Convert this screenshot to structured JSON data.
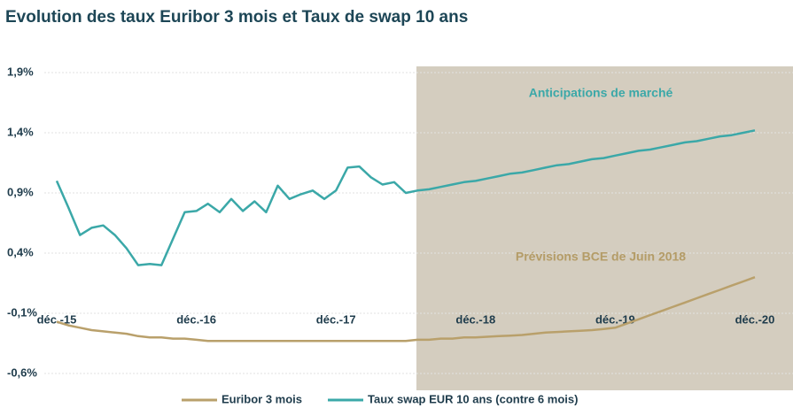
{
  "chart_data": {
    "type": "line",
    "title": "Evolution des taux Euribor 3 mois et Taux de swap 10 ans",
    "annotations": [
      "Anticipations de marché",
      "Prévisions BCE de Juin 2018"
    ],
    "x": [
      "2015-12",
      "2016-01",
      "2016-02",
      "2016-03",
      "2016-04",
      "2016-05",
      "2016-06",
      "2016-07",
      "2016-08",
      "2016-09",
      "2016-10",
      "2016-11",
      "2016-12",
      "2017-01",
      "2017-02",
      "2017-03",
      "2017-04",
      "2017-05",
      "2017-06",
      "2017-07",
      "2017-08",
      "2017-09",
      "2017-10",
      "2017-11",
      "2017-12",
      "2018-01",
      "2018-02",
      "2018-03",
      "2018-04",
      "2018-05",
      "2018-06",
      "2018-07",
      "2018-08",
      "2018-09",
      "2018-10",
      "2018-11",
      "2018-12",
      "2019-01",
      "2019-02",
      "2019-03",
      "2019-04",
      "2019-05",
      "2019-06",
      "2019-07",
      "2019-08",
      "2019-09",
      "2019-10",
      "2019-11",
      "2019-12",
      "2020-01",
      "2020-02",
      "2020-03",
      "2020-04",
      "2020-05",
      "2020-06",
      "2020-07",
      "2020-08",
      "2020-09",
      "2020-10",
      "2020-11",
      "2020-12"
    ],
    "series": [
      {
        "name": "Euribor 3 mois",
        "color": "#b9a06b",
        "values": [
          -0.17,
          -0.2,
          -0.22,
          -0.24,
          -0.25,
          -0.26,
          -0.27,
          -0.29,
          -0.3,
          -0.3,
          -0.31,
          -0.31,
          -0.32,
          -0.33,
          -0.33,
          -0.33,
          -0.33,
          -0.33,
          -0.33,
          -0.33,
          -0.33,
          -0.33,
          -0.33,
          -0.33,
          -0.33,
          -0.33,
          -0.33,
          -0.33,
          -0.33,
          -0.33,
          -0.33,
          -0.32,
          -0.32,
          -0.31,
          -0.31,
          -0.3,
          -0.3,
          -0.295,
          -0.29,
          -0.285,
          -0.28,
          -0.27,
          -0.26,
          -0.255,
          -0.25,
          -0.245,
          -0.24,
          -0.23,
          -0.22,
          -0.185,
          -0.15,
          -0.115,
          -0.08,
          -0.045,
          -0.01,
          0.025,
          0.06,
          0.095,
          0.13,
          0.165,
          0.2
        ]
      },
      {
        "name": "Taux swap EUR 10 ans (contre 6 mois)",
        "color": "#3ba8a8",
        "values": [
          1.0,
          0.78,
          0.55,
          0.61,
          0.63,
          0.55,
          0.44,
          0.3,
          0.31,
          0.3,
          0.52,
          0.74,
          0.75,
          0.81,
          0.74,
          0.85,
          0.75,
          0.83,
          0.74,
          0.96,
          0.85,
          0.89,
          0.92,
          0.85,
          0.92,
          1.11,
          1.12,
          1.03,
          0.97,
          0.99,
          0.9,
          0.92,
          0.93,
          0.95,
          0.97,
          0.99,
          1.0,
          1.02,
          1.04,
          1.06,
          1.07,
          1.09,
          1.11,
          1.13,
          1.14,
          1.16,
          1.18,
          1.19,
          1.21,
          1.23,
          1.25,
          1.26,
          1.28,
          1.3,
          1.32,
          1.33,
          1.35,
          1.37,
          1.38,
          1.4,
          1.42
        ]
      }
    ],
    "xlim": [
      "2015-12",
      "2020-12"
    ],
    "xticks": [
      {
        "value": "2015-12",
        "label": "déc.-15"
      },
      {
        "value": "2016-12",
        "label": "déc.-16"
      },
      {
        "value": "2017-12",
        "label": "déc.-17"
      },
      {
        "value": "2018-12",
        "label": "déc.-18"
      },
      {
        "value": "2019-12",
        "label": "déc.-19"
      },
      {
        "value": "2020-12",
        "label": "déc.-20"
      }
    ],
    "ylim": [
      -0.6,
      1.9
    ],
    "yticks": [
      {
        "value": -0.6,
        "label": "-0,6%"
      },
      {
        "value": -0.1,
        "label": "-0,1%"
      },
      {
        "value": 0.4,
        "label": "0,4%"
      },
      {
        "value": 0.9,
        "label": "0,9%"
      },
      {
        "value": 1.4,
        "label": "1,4%"
      },
      {
        "value": 1.9,
        "label": "1,9%"
      }
    ],
    "grid": true,
    "legend": "bottom"
  }
}
